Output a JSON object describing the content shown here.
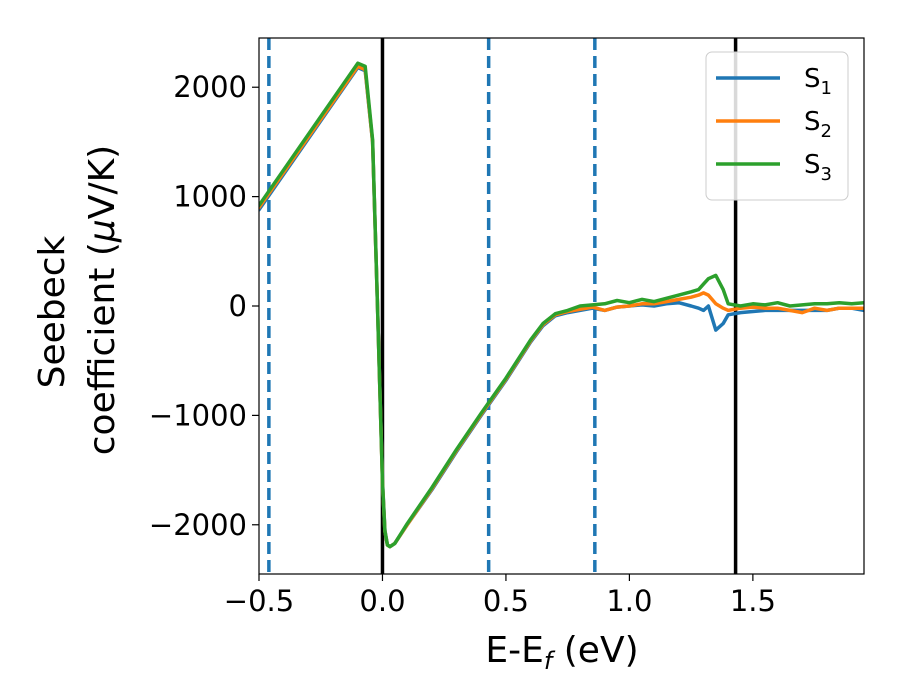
{
  "chart_data": {
    "type": "line",
    "xlabel": {
      "main": "E-E",
      "sub": "f",
      "tail": " (eV)"
    },
    "ylabel": {
      "line1": "Seebeck",
      "line2a": "coefficient  (",
      "mu": "μ",
      "line2b": "V/K)"
    },
    "xlim": [
      -0.5,
      1.95
    ],
    "ylim": [
      -2450,
      2450
    ],
    "xticks": [
      -0.5,
      0.0,
      0.5,
      1.0,
      1.5
    ],
    "xtick_labels": [
      "−0.5",
      "0.0",
      "0.5",
      "1.0",
      "1.5"
    ],
    "yticks": [
      2000,
      1000,
      0,
      -1000,
      -2000
    ],
    "ytick_labels": [
      "2000",
      "1000",
      "0",
      "−1000",
      "−2000"
    ],
    "grid": false,
    "legend_position": "top-right",
    "series": [
      {
        "name": "S",
        "sub": "1",
        "color": "#1f77b4",
        "x": [
          -0.5,
          -0.1,
          -0.07,
          -0.04,
          -0.02,
          0.0,
          0.01,
          0.02,
          0.03,
          0.05,
          0.1,
          0.2,
          0.3,
          0.4,
          0.5,
          0.6,
          0.65,
          0.7,
          0.75,
          0.8,
          0.85,
          0.9,
          0.95,
          1.0,
          1.05,
          1.1,
          1.15,
          1.2,
          1.25,
          1.28,
          1.3,
          1.32,
          1.35,
          1.38,
          1.4,
          1.45,
          1.5,
          1.55,
          1.6,
          1.65,
          1.7,
          1.75,
          1.8,
          1.85,
          1.9,
          1.95
        ],
        "y": [
          880,
          2180,
          2150,
          1500,
          0,
          -1600,
          -2050,
          -2180,
          -2200,
          -2170,
          -2000,
          -1680,
          -1330,
          -1000,
          -680,
          -330,
          -180,
          -90,
          -60,
          -40,
          -20,
          -40,
          -10,
          0,
          10,
          0,
          20,
          30,
          0,
          -20,
          -40,
          0,
          -220,
          -160,
          -80,
          -60,
          -50,
          -40,
          -40,
          -40,
          -40,
          -40,
          -40,
          -20,
          -20,
          -40
        ]
      },
      {
        "name": "S",
        "sub": "2",
        "color": "#ff7f0e",
        "x": [
          -0.5,
          -0.1,
          -0.07,
          -0.04,
          -0.02,
          0.0,
          0.01,
          0.02,
          0.03,
          0.05,
          0.1,
          0.2,
          0.3,
          0.4,
          0.5,
          0.6,
          0.65,
          0.7,
          0.75,
          0.8,
          0.85,
          0.9,
          0.95,
          1.0,
          1.05,
          1.1,
          1.15,
          1.2,
          1.25,
          1.28,
          1.3,
          1.32,
          1.35,
          1.38,
          1.4,
          1.45,
          1.5,
          1.55,
          1.6,
          1.65,
          1.7,
          1.75,
          1.8,
          1.85,
          1.9,
          1.95
        ],
        "y": [
          900,
          2190,
          2160,
          1500,
          0,
          -1620,
          -2060,
          -2185,
          -2200,
          -2170,
          -2000,
          -1670,
          -1320,
          -990,
          -670,
          -320,
          -170,
          -80,
          -50,
          -30,
          -10,
          -40,
          -10,
          0,
          20,
          20,
          40,
          60,
          80,
          100,
          120,
          100,
          20,
          -20,
          -40,
          -20,
          -10,
          -20,
          -20,
          -40,
          -60,
          -20,
          -40,
          -20,
          -20,
          -20
        ]
      },
      {
        "name": "S",
        "sub": "3",
        "color": "#2ca02c",
        "x": [
          -0.5,
          -0.1,
          -0.07,
          -0.04,
          -0.02,
          0.0,
          0.01,
          0.02,
          0.03,
          0.05,
          0.1,
          0.2,
          0.3,
          0.4,
          0.5,
          0.6,
          0.65,
          0.7,
          0.75,
          0.8,
          0.85,
          0.9,
          0.95,
          1.0,
          1.05,
          1.1,
          1.15,
          1.2,
          1.25,
          1.28,
          1.3,
          1.32,
          1.35,
          1.38,
          1.4,
          1.45,
          1.5,
          1.55,
          1.6,
          1.65,
          1.7,
          1.75,
          1.8,
          1.85,
          1.9,
          1.95
        ],
        "y": [
          920,
          2220,
          2190,
          1520,
          0,
          -1620,
          -2060,
          -2185,
          -2200,
          -2170,
          -1990,
          -1660,
          -1310,
          -980,
          -660,
          -310,
          -160,
          -70,
          -40,
          0,
          10,
          20,
          50,
          30,
          60,
          40,
          70,
          100,
          130,
          150,
          200,
          250,
          280,
          150,
          20,
          0,
          20,
          10,
          30,
          0,
          10,
          20,
          20,
          30,
          20,
          30
        ]
      }
    ],
    "vlines": [
      {
        "x": -0.46,
        "style": "dashed",
        "color": "#1f77b4"
      },
      {
        "x": 0.0,
        "style": "solid",
        "color": "#000000"
      },
      {
        "x": 0.43,
        "style": "dashed",
        "color": "#1f77b4"
      },
      {
        "x": 0.86,
        "style": "dashed",
        "color": "#1f77b4"
      },
      {
        "x": 1.43,
        "style": "solid",
        "color": "#000000"
      }
    ]
  }
}
